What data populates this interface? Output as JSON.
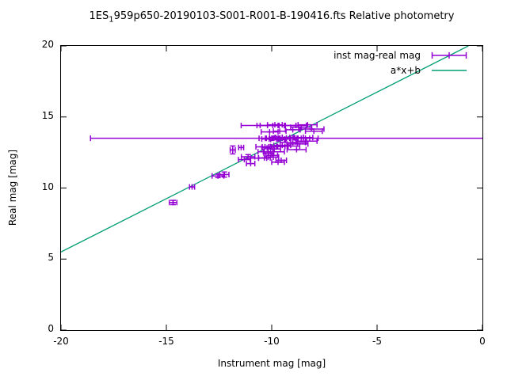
{
  "title": {
    "prefix": "1ES",
    "subscript": "1",
    "rest": "959p650-20190103-S001-R001-B-190416.fts Relative photometry"
  },
  "legend": {
    "series1_label": "inst mag-real mag",
    "series2_label": "a*x+b"
  },
  "colors": {
    "points": "#9400d3",
    "fit_line": "#009e73",
    "border": "#000000",
    "background": "#ffffff",
    "text": "#000000"
  },
  "chart_data": {
    "type": "scatter",
    "title": "1ES_1959p650-20190103-S001-R001-B-190416.fts Relative photometry",
    "xlabel": "Instrument mag [mag]",
    "ylabel": "Real mag [mag]",
    "xlim": [
      -20,
      0
    ],
    "ylim": [
      0,
      20
    ],
    "x_ticks": [
      "-20",
      "-15",
      "-10",
      "-5",
      "0"
    ],
    "x_tick_values": [
      -20,
      -15,
      -10,
      -5,
      0
    ],
    "y_ticks": [
      "0",
      "5",
      "10",
      "15",
      "20"
    ],
    "y_tick_values": [
      0,
      5,
      10,
      15,
      20
    ],
    "grid": false,
    "legend_position": "top-right-inside",
    "fit_line": {
      "a": 0.75,
      "b": 20.5
    },
    "wide_error_point": {
      "x": -9.3,
      "y": 13.5,
      "x_low": -18.6,
      "x_high": 0.0,
      "clipped_right": true
    },
    "points": [
      {
        "x": -14.68,
        "y": 8.98,
        "xe": 0.18,
        "ye": 0.15
      },
      {
        "x": -13.78,
        "y": 10.08,
        "xe": 0.12
      },
      {
        "x": -12.55,
        "y": 10.85,
        "xe": 0.28,
        "ye": 0.12
      },
      {
        "x": -12.25,
        "y": 10.95,
        "xe": 0.22,
        "ye": 0.18
      },
      {
        "x": -11.85,
        "y": 12.68,
        "xe": 0.12,
        "ye": 0.28
      },
      {
        "x": -11.45,
        "y": 12.85,
        "xe": 0.12
      },
      {
        "x": -11.3,
        "y": 12.0,
        "xe": 0.28
      },
      {
        "x": -11.12,
        "y": 12.2,
        "xe": 0.32,
        "ye": 0.15
      },
      {
        "x": -11.0,
        "y": 11.72,
        "xe": 0.2
      },
      {
        "x": -10.62,
        "y": 12.1,
        "xe": 0.38
      },
      {
        "x": -10.35,
        "y": 12.12,
        "xe": 0.28
      },
      {
        "x": -10.15,
        "y": 12.45,
        "xe": 0.22
      },
      {
        "x": -10.0,
        "y": 12.3,
        "xe": 0.28
      },
      {
        "x": -9.92,
        "y": 12.18,
        "xe": 0.25
      },
      {
        "x": -9.7,
        "y": 11.82,
        "xe": 0.3
      },
      {
        "x": -9.55,
        "y": 11.95,
        "xe": 0.25
      },
      {
        "x": -10.45,
        "y": 12.9,
        "xe": 0.3
      },
      {
        "x": -10.22,
        "y": 12.82,
        "xe": 0.25
      },
      {
        "x": -10.02,
        "y": 12.9,
        "xe": 0.3
      },
      {
        "x": -9.88,
        "y": 12.75,
        "xe": 0.3
      },
      {
        "x": -9.72,
        "y": 12.92,
        "xe": 0.35
      },
      {
        "x": -9.5,
        "y": 13.0,
        "xe": 0.4
      },
      {
        "x": -9.22,
        "y": 12.95,
        "xe": 0.55
      },
      {
        "x": -8.78,
        "y": 13.1,
        "xe": 0.5
      },
      {
        "x": -8.82,
        "y": 12.7,
        "xe": 0.45
      },
      {
        "x": -10.35,
        "y": 12.55,
        "xe": 0.3
      },
      {
        "x": -9.9,
        "y": 12.55,
        "xe": 0.5
      },
      {
        "x": -10.3,
        "y": 13.5,
        "xe": 0.3
      },
      {
        "x": -10.12,
        "y": 13.45,
        "xe": 0.35
      },
      {
        "x": -9.95,
        "y": 13.5,
        "xe": 0.3
      },
      {
        "x": -9.8,
        "y": 13.55,
        "xe": 0.3
      },
      {
        "x": -9.7,
        "y": 13.42,
        "xe": 0.35
      },
      {
        "x": -9.6,
        "y": 13.5,
        "xe": 0.3
      },
      {
        "x": -9.5,
        "y": 13.55,
        "xe": 0.35
      },
      {
        "x": -9.4,
        "y": 13.45,
        "xe": 0.3
      },
      {
        "x": -9.3,
        "y": 13.52,
        "xe": 0.4
      },
      {
        "x": -9.15,
        "y": 13.5,
        "xe": 0.35
      },
      {
        "x": -9.0,
        "y": 13.55,
        "xe": 0.5
      },
      {
        "x": -8.75,
        "y": 13.5,
        "xe": 0.35
      },
      {
        "x": -8.5,
        "y": 13.55,
        "xe": 0.45
      },
      {
        "x": -8.2,
        "y": 13.5,
        "xe": 0.4
      },
      {
        "x": -8.35,
        "y": 13.3,
        "xe": 0.5
      },
      {
        "x": -9.0,
        "y": 13.2,
        "xe": 0.6
      },
      {
        "x": -10.55,
        "y": 14.4,
        "xe": 0.9
      },
      {
        "x": -10.2,
        "y": 14.4,
        "xe": 0.5
      },
      {
        "x": -9.85,
        "y": 14.45,
        "xe": 0.35
      },
      {
        "x": -9.4,
        "y": 14.4,
        "xe": 0.55
      },
      {
        "x": -8.85,
        "y": 14.4,
        "xe": 0.5
      },
      {
        "x": -8.6,
        "y": 14.28,
        "xe": 0.5
      },
      {
        "x": -8.3,
        "y": 14.45,
        "xe": 0.45
      },
      {
        "x": -8.12,
        "y": 14.15,
        "xe": 0.6
      },
      {
        "x": -8.0,
        "y": 14.0,
        "xe": 0.4
      },
      {
        "x": -9.0,
        "y": 14.1,
        "xe": 0.35
      },
      {
        "x": -9.62,
        "y": 14.0,
        "xe": 0.3
      },
      {
        "x": -10.1,
        "y": 13.95,
        "xe": 0.4
      }
    ]
  }
}
